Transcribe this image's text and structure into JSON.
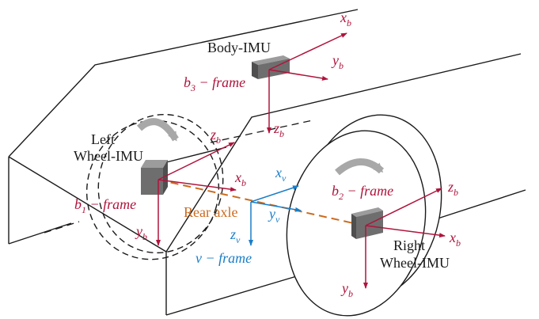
{
  "colors": {
    "body_frame": "#b0143c",
    "vehicle_frame": "#1a7ec8",
    "rear_axle": "#cc6b1e",
    "outline": "#1a1a1a",
    "sensor": "#6e6e6e"
  },
  "labels": {
    "body_imu": "Body-IMU",
    "left_wheel_imu_line1": "Left",
    "left_wheel_imu_line2": "Wheel-IMU",
    "right_wheel_imu_line1": "Right",
    "right_wheel_imu_line2": "Wheel-IMU",
    "rear_axle": "Rear axle"
  },
  "frames": {
    "body": {
      "base": "b",
      "sub": "3",
      "suffix": " − frame"
    },
    "left_wheel": {
      "base": "b",
      "sub": "1",
      "suffix": " − frame"
    },
    "right_wheel": {
      "base": "b",
      "sub": "2",
      "suffix": " − frame"
    },
    "vehicle": {
      "text": "v − frame"
    }
  },
  "axes": {
    "body": {
      "base": "b",
      "x": "x",
      "y": "y",
      "z": "z"
    },
    "vehicle": {
      "base": "v",
      "x": "x",
      "y": "y",
      "z": "z"
    }
  },
  "icons": [
    "body-imu-sensor-icon",
    "left-wheel-imu-sensor-icon",
    "right-wheel-imu-sensor-icon",
    "left-rotation-arrow-icon",
    "right-rotation-arrow-icon"
  ]
}
